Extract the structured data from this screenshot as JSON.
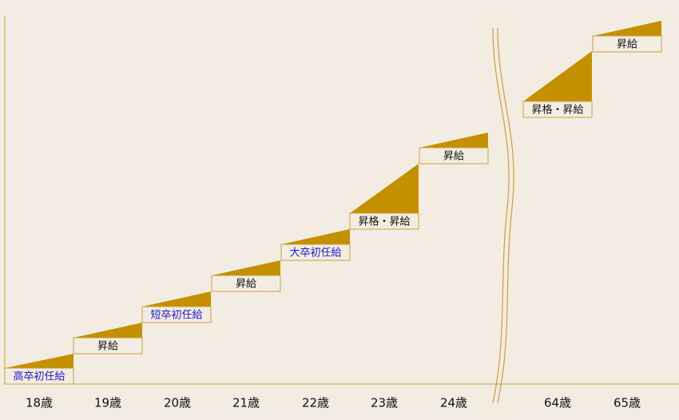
{
  "steps": [
    {
      "label": "高卒初任給",
      "color": "#1a1acc"
    },
    {
      "label": "昇給",
      "color": "#111111"
    },
    {
      "label": "短卒初任給",
      "color": "#1a1acc"
    },
    {
      "label": "昇給",
      "color": "#111111"
    },
    {
      "label": "大卒初任給",
      "color": "#1a1acc"
    },
    {
      "label": "昇格・昇給",
      "color": "#111111"
    },
    {
      "label": "昇給",
      "color": "#111111"
    },
    {
      "label": "昇格・昇給",
      "color": "#111111"
    },
    {
      "label": "昇給",
      "color": "#111111"
    }
  ],
  "ages": [
    "18歳",
    "19歳",
    "20歳",
    "21歳",
    "22歳",
    "23歳",
    "24歳",
    "64歳",
    "65歳"
  ]
}
